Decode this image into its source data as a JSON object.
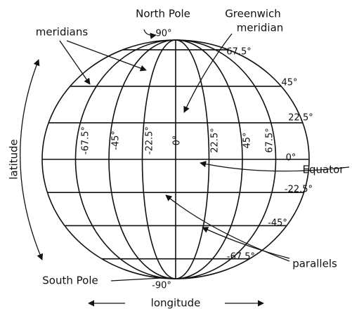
{
  "labels": {
    "north_pole": "North Pole",
    "south_pole": "South Pole",
    "greenwich": [
      "Greenwich",
      "meridian"
    ],
    "meridians": "meridians",
    "latitude": "latitude",
    "longitude": "longitude",
    "equator": "Equator",
    "parallels": "parallels"
  },
  "latitude_labels": [
    "90°",
    "67.5°",
    "45°",
    "22.5°",
    "0°",
    "-22.5°",
    "-45°",
    "-67.5°",
    "-90°"
  ],
  "longitude_labels": [
    "-67.5°",
    "-45°",
    "-22.5°",
    "0°",
    "22.5°",
    "45°",
    "67.5°"
  ]
}
